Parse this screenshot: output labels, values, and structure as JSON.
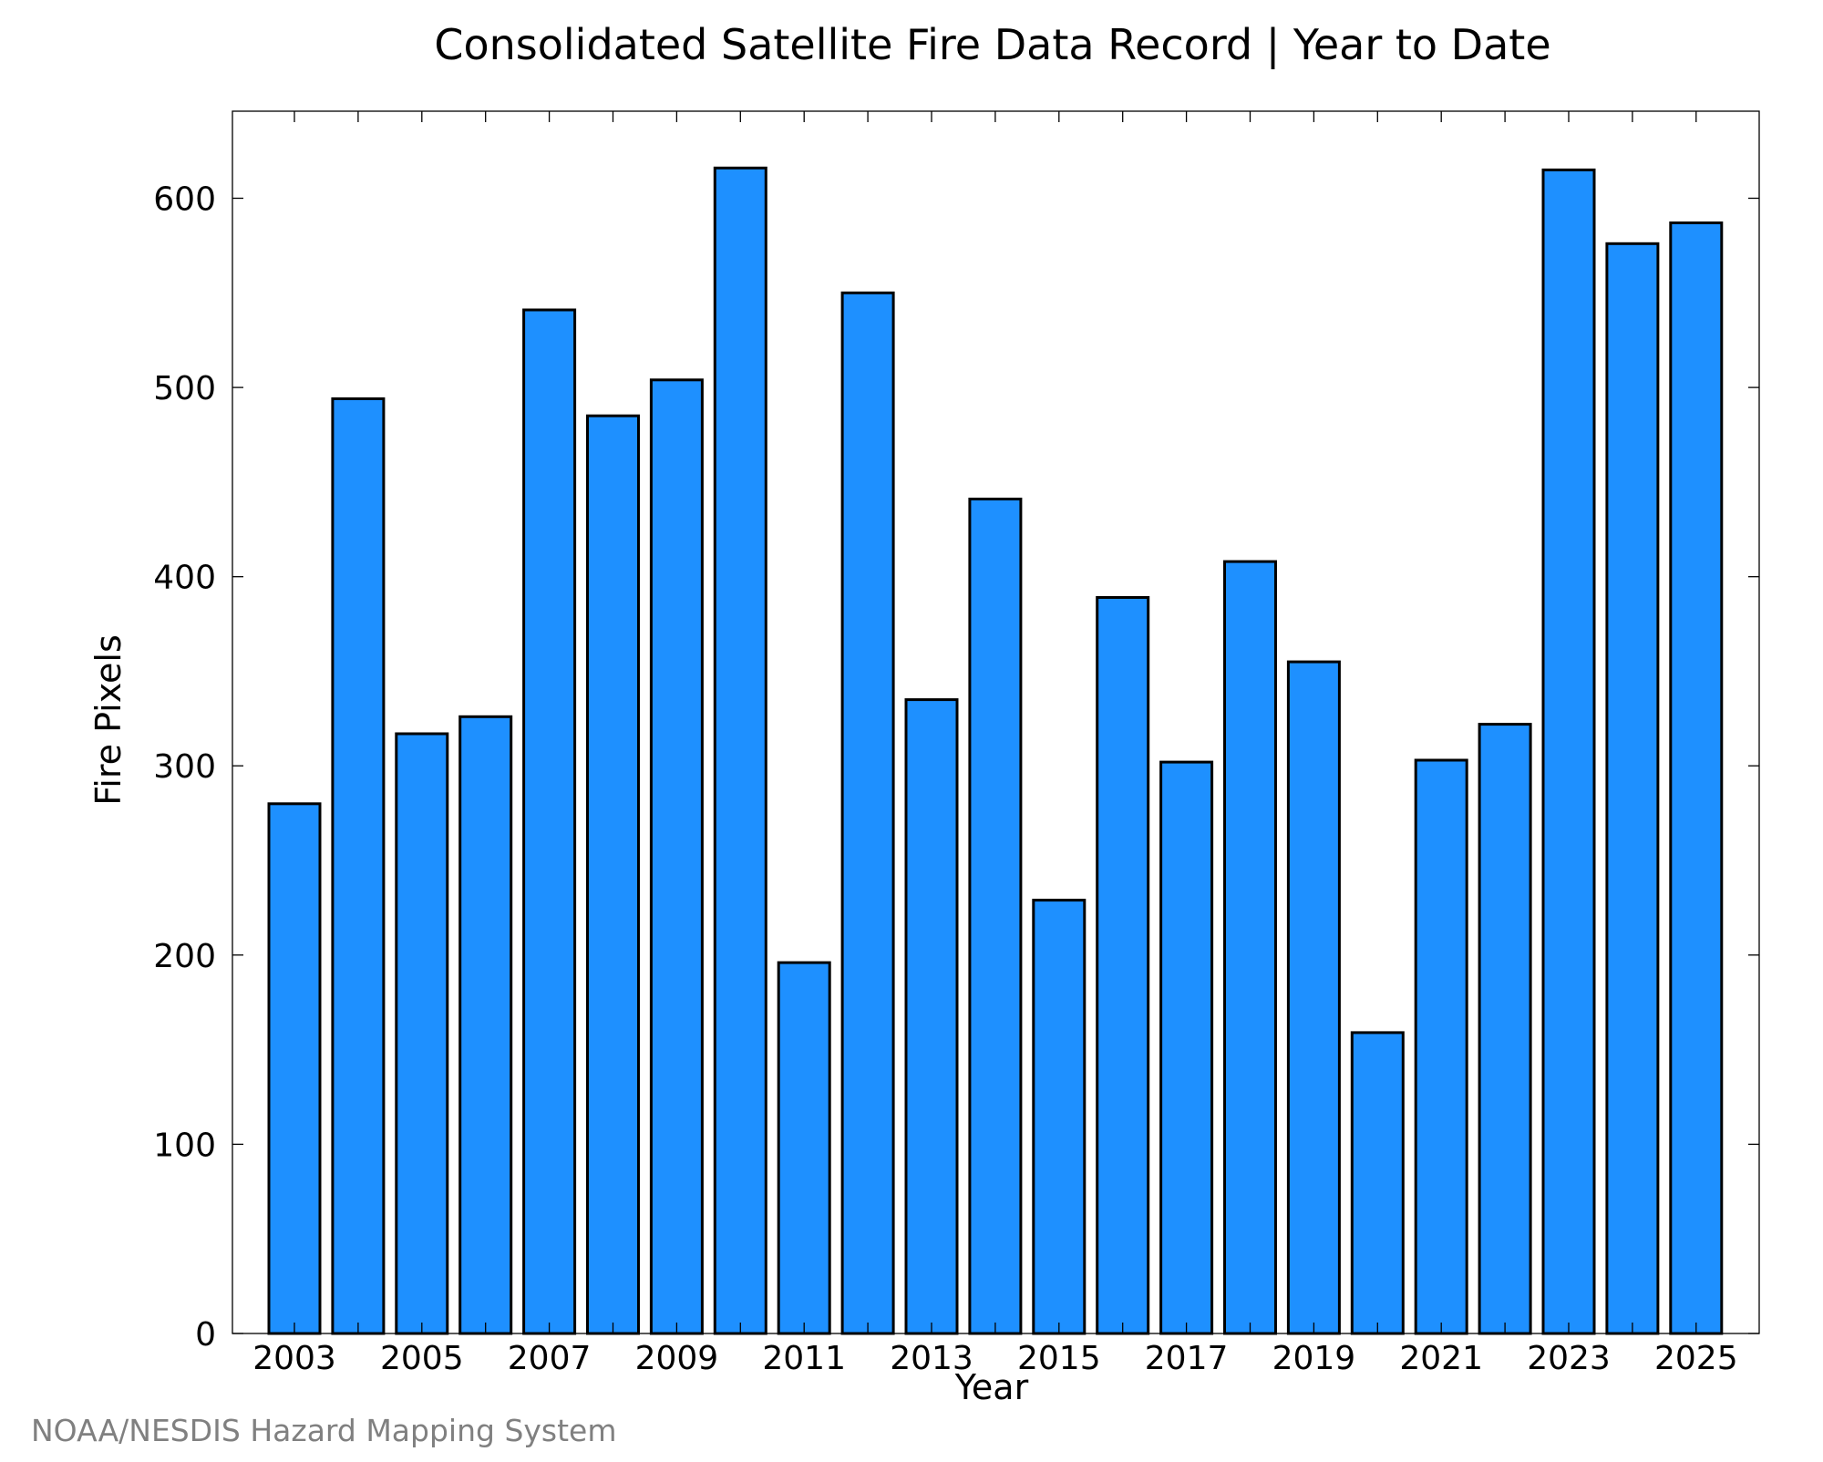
{
  "chart_data": {
    "type": "bar",
    "title": "Consolidated Satellite Fire Data Record | Year to Date",
    "xlabel": "Year",
    "ylabel": "Fire Pixels",
    "categories": [
      "2003",
      "2004",
      "2005",
      "2006",
      "2007",
      "2008",
      "2009",
      "2010",
      "2011",
      "2012",
      "2013",
      "2014",
      "2015",
      "2016",
      "2017",
      "2018",
      "2019",
      "2020",
      "2021",
      "2022",
      "2023",
      "2024",
      "2025"
    ],
    "values": [
      280,
      494,
      317,
      326,
      541,
      485,
      504,
      616,
      196,
      550,
      335,
      441,
      229,
      389,
      302,
      408,
      355,
      159,
      303,
      322,
      615,
      576,
      587
    ],
    "x_tick_labels": [
      "2003",
      "2005",
      "2007",
      "2009",
      "2011",
      "2013",
      "2015",
      "2017",
      "2019",
      "2021",
      "2023",
      "2025"
    ],
    "y_ticks": [
      0,
      100,
      200,
      300,
      400,
      500,
      600
    ],
    "ylim": [
      0,
      646
    ],
    "grid": false,
    "legend": "none",
    "bar_color": "#1e90ff",
    "edge_color": "#000000"
  },
  "credit": "NOAA/NESDIS Hazard Mapping System"
}
